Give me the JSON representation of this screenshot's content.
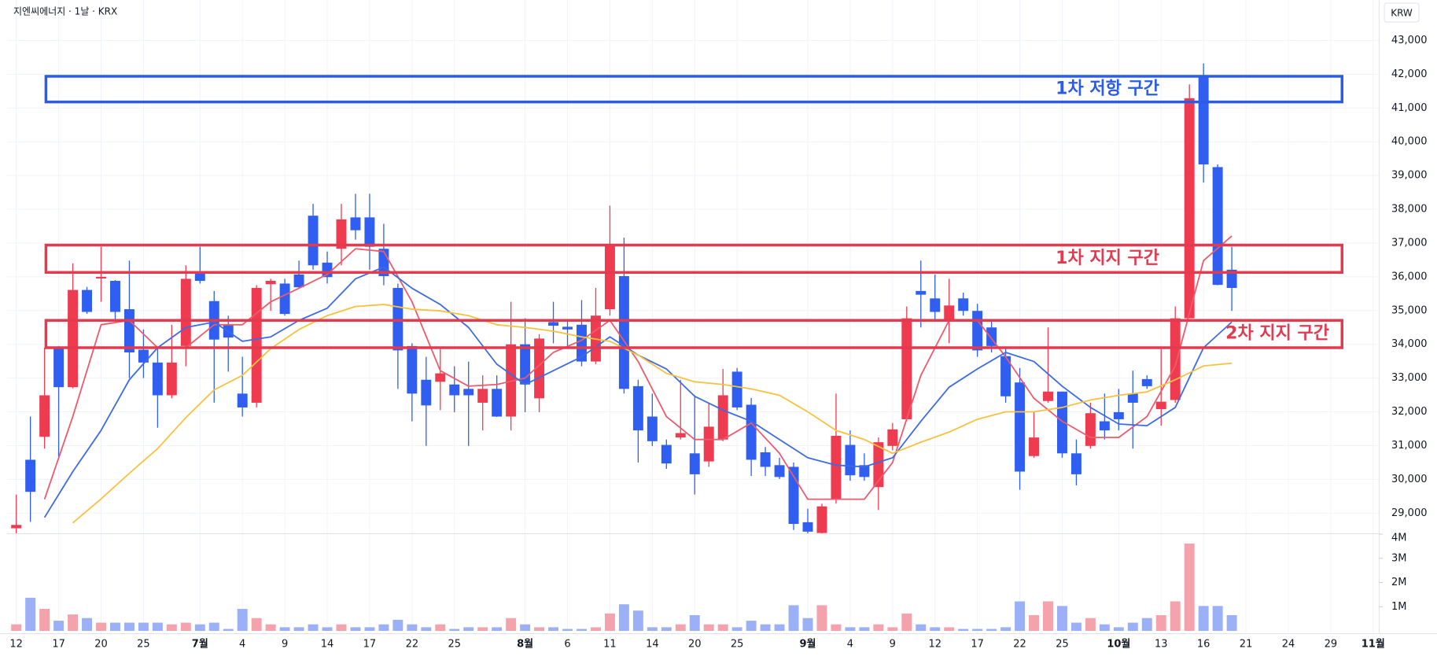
{
  "chart_data": {
    "type": "candlestick",
    "title": "지엔씨에너지 · 1날 · KRX",
    "currency": "KRW",
    "up_color": "#ef3b50",
    "down_color": "#2f5ef0",
    "volume_up_color": "#f4a2ab",
    "volume_down_color": "#9bb0f7",
    "grid": true,
    "xlim": [
      -0.65,
      96.4
    ],
    "ylim": [
      28400,
      44200
    ],
    "xticks": [
      {
        "value": 0,
        "label": "12"
      },
      {
        "value": 3,
        "label": "17"
      },
      {
        "value": 6,
        "label": "20"
      },
      {
        "value": 9,
        "label": "25"
      },
      {
        "value": 13,
        "label": "7월",
        "bold": true
      },
      {
        "value": 16,
        "label": "4"
      },
      {
        "value": 19,
        "label": "9"
      },
      {
        "value": 22,
        "label": "14"
      },
      {
        "value": 25,
        "label": "17"
      },
      {
        "value": 28,
        "label": "22"
      },
      {
        "value": 31,
        "label": "25"
      },
      {
        "value": 36,
        "label": "8월",
        "bold": true
      },
      {
        "value": 39,
        "label": "6"
      },
      {
        "value": 42,
        "label": "11"
      },
      {
        "value": 45,
        "label": "14"
      },
      {
        "value": 48,
        "label": "20"
      },
      {
        "value": 51,
        "label": "25"
      },
      {
        "value": 56,
        "label": "9월",
        "bold": true
      },
      {
        "value": 59,
        "label": "4"
      },
      {
        "value": 62,
        "label": "9"
      },
      {
        "value": 65,
        "label": "12"
      },
      {
        "value": 68,
        "label": "17"
      },
      {
        "value": 71,
        "label": "22"
      },
      {
        "value": 74,
        "label": "25"
      },
      {
        "value": 78,
        "label": "10월",
        "bold": true
      },
      {
        "value": 81,
        "label": "13"
      },
      {
        "value": 84,
        "label": "16"
      },
      {
        "value": 87,
        "label": "21"
      },
      {
        "value": 90,
        "label": "24"
      },
      {
        "value": 93,
        "label": "29"
      },
      {
        "value": 96,
        "label": "11월",
        "bold": true
      }
    ],
    "yticks": [
      {
        "value": 29000,
        "label": "29,000"
      },
      {
        "value": 30000,
        "label": "30,000"
      },
      {
        "value": 31000,
        "label": "31,000"
      },
      {
        "value": 32000,
        "label": "32,000"
      },
      {
        "value": 33000,
        "label": "33,000"
      },
      {
        "value": 34000,
        "label": "34,000"
      },
      {
        "value": 35000,
        "label": "35,000"
      },
      {
        "value": 36000,
        "label": "36,000"
      },
      {
        "value": 37000,
        "label": "37,000"
      },
      {
        "value": 38000,
        "label": "38,000"
      },
      {
        "value": 39000,
        "label": "39,000"
      },
      {
        "value": 40000,
        "label": "40,000"
      },
      {
        "value": 41000,
        "label": "41,000"
      },
      {
        "value": 42000,
        "label": "42,000"
      },
      {
        "value": 43000,
        "label": "43,000"
      }
    ],
    "candles": {
      "x": [
        0,
        1,
        2,
        3,
        4,
        5,
        6,
        7,
        8,
        9,
        10,
        11,
        12,
        13,
        14,
        15,
        16,
        17,
        18,
        19,
        20,
        21,
        22,
        23,
        24,
        25,
        26,
        27,
        28,
        29,
        30,
        31,
        32,
        33,
        34,
        35,
        36,
        37,
        38,
        39,
        40,
        41,
        42,
        43,
        44,
        45,
        46,
        47,
        48,
        49,
        50,
        51,
        52,
        53,
        54,
        55,
        56,
        57,
        58,
        59,
        60,
        61,
        62,
        63,
        64,
        65,
        66,
        67,
        68,
        69,
        70,
        71,
        72,
        73,
        74,
        75,
        76,
        77,
        78,
        79,
        80,
        81,
        82,
        83,
        84,
        85,
        86
      ],
      "open": [
        28550,
        30580,
        31260,
        33900,
        32730,
        35610,
        35950,
        35880,
        35040,
        33840,
        33460,
        32490,
        33950,
        36150,
        35280,
        34580,
        32540,
        32270,
        35780,
        35800,
        36070,
        37810,
        36420,
        36830,
        37760,
        37760,
        36830,
        35670,
        33950,
        32950,
        32890,
        32810,
        32680,
        32270,
        32680,
        31860,
        34000,
        32400,
        34660,
        34520,
        34580,
        33490,
        35040,
        36020,
        32760,
        31860,
        31020,
        31240,
        30770,
        30530,
        31180,
        33190,
        32210,
        30800,
        30420,
        30370,
        28730,
        28410,
        29410,
        31020,
        30420,
        29770,
        30990,
        31780,
        35580,
        35360,
        34710,
        35360,
        34990,
        34500,
        33650,
        32870,
        30690,
        32320,
        32600,
        30770,
        30990,
        31720,
        31990,
        32540,
        32970,
        32080,
        32350,
        34770,
        41970,
        39250,
        36210
      ],
      "high": [
        29550,
        31860,
        33900,
        33950,
        36400,
        35700,
        36890,
        35900,
        36480,
        34440,
        33900,
        34580,
        36340,
        36890,
        35580,
        34850,
        33630,
        35750,
        35940,
        35940,
        36480,
        38160,
        36750,
        38160,
        38460,
        38460,
        37570,
        35800,
        34030,
        33630,
        33900,
        33350,
        33490,
        33080,
        33080,
        35260,
        34770,
        34300,
        35260,
        34720,
        35310,
        35670,
        38110,
        37160,
        32950,
        32540,
        31180,
        32950,
        32490,
        32270,
        33270,
        33300,
        32410,
        30960,
        30640,
        30500,
        29130,
        29280,
        32540,
        31450,
        30770,
        31240,
        31670,
        35120,
        36480,
        36070,
        35940,
        35530,
        35200,
        34720,
        33900,
        33300,
        31990,
        34500,
        32600,
        31180,
        32270,
        32540,
        32680,
        33220,
        33080,
        33900,
        35120,
        41700,
        42320,
        39330,
        36890
      ],
      "low": [
        28400,
        28740,
        30910,
        30640,
        32700,
        34900,
        35260,
        34700,
        33000,
        33000,
        31530,
        32400,
        33350,
        35800,
        32270,
        33190,
        31860,
        32130,
        34990,
        34850,
        35670,
        36210,
        35800,
        36340,
        37100,
        36210,
        35750,
        32680,
        31720,
        30990,
        32050,
        31990,
        30990,
        31450,
        31850,
        31450,
        31990,
        31990,
        34030,
        33900,
        33350,
        33410,
        34850,
        32540,
        30500,
        30990,
        30310,
        31180,
        29550,
        30370,
        31130,
        32050,
        30100,
        30100,
        30010,
        28500,
        28400,
        28400,
        29280,
        29960,
        29960,
        29090,
        30860,
        31720,
        34500,
        34720,
        34030,
        34850,
        33630,
        33760,
        32270,
        29690,
        30640,
        32270,
        30640,
        29820,
        30910,
        31180,
        31450,
        30910,
        32680,
        31590,
        32270,
        34770,
        38790,
        35750,
        34990
      ],
      "close": [
        28650,
        29630,
        32490,
        32730,
        35610,
        34960,
        36000,
        34960,
        33760,
        33460,
        32490,
        33460,
        35940,
        35880,
        34140,
        34200,
        32130,
        35670,
        35880,
        34900,
        35690,
        36340,
        35990,
        37700,
        37380,
        36890,
        36020,
        33820,
        32540,
        32190,
        33140,
        32490,
        32490,
        32680,
        31860,
        34000,
        32810,
        34170,
        34550,
        34440,
        33490,
        34850,
        36970,
        32680,
        31450,
        31130,
        30470,
        31370,
        30150,
        31560,
        32490,
        32130,
        30580,
        30370,
        30070,
        28680,
        28450,
        29200,
        31290,
        30120,
        30070,
        31100,
        31480,
        34770,
        35470,
        34960,
        35150,
        34990,
        33820,
        33950,
        32460,
        30230,
        31240,
        32600,
        30770,
        30150,
        31960,
        31450,
        31780,
        32270,
        32760,
        32300,
        34770,
        41290,
        39330,
        35760,
        35670
      ]
    },
    "moving_averages": [
      {
        "color": "#ec5b6c",
        "x": [
          2,
          4,
          6,
          8,
          10,
          12,
          14,
          16,
          18,
          20,
          22,
          24,
          26,
          28,
          30,
          32,
          34,
          36,
          38,
          40,
          42,
          44,
          46,
          48,
          50,
          52,
          54,
          56,
          58,
          60,
          62,
          64,
          66,
          68,
          70,
          72,
          74,
          76,
          78,
          80,
          82,
          84,
          86
        ],
        "values": [
          29410,
          31860,
          34580,
          34710,
          33900,
          33900,
          34580,
          34580,
          35260,
          35660,
          36070,
          36830,
          36750,
          35260,
          33220,
          32760,
          32810,
          33000,
          33760,
          34120,
          34710,
          33490,
          31860,
          31180,
          31180,
          31670,
          30770,
          29410,
          29410,
          29410,
          30500,
          33080,
          34710,
          34710,
          33630,
          32400,
          31720,
          31240,
          31240,
          31860,
          33360,
          36480,
          37210
        ]
      },
      {
        "color": "#3d6ae6",
        "x": [
          2,
          4,
          6,
          8,
          10,
          12,
          14,
          16,
          18,
          20,
          22,
          24,
          26,
          28,
          30,
          32,
          34,
          36,
          38,
          40,
          42,
          44,
          46,
          48,
          50,
          52,
          54,
          56,
          58,
          60,
          62,
          64,
          66,
          68,
          70,
          72,
          74,
          76,
          78,
          80,
          82,
          84,
          86
        ],
        "values": [
          28870,
          30230,
          31450,
          32950,
          33900,
          34500,
          34660,
          34090,
          34220,
          34710,
          35070,
          35940,
          36290,
          35660,
          35180,
          34500,
          33410,
          32810,
          33220,
          33630,
          34220,
          33680,
          33270,
          32460,
          32050,
          31720,
          31180,
          30640,
          30420,
          30370,
          30640,
          31720,
          32730,
          33270,
          33760,
          33490,
          32760,
          32130,
          31640,
          31590,
          32130,
          33900,
          34660
        ]
      },
      {
        "color": "#f6c23e",
        "x": [
          4,
          6,
          8,
          10,
          12,
          14,
          16,
          18,
          20,
          22,
          24,
          26,
          28,
          30,
          32,
          34,
          36,
          38,
          40,
          42,
          44,
          46,
          48,
          50,
          52,
          54,
          56,
          58,
          60,
          62,
          64,
          66,
          68,
          70,
          72,
          74,
          76,
          78,
          80,
          82,
          84,
          86
        ],
        "values": [
          28710,
          29420,
          30180,
          30910,
          31830,
          32650,
          33080,
          33870,
          34440,
          34850,
          35120,
          35180,
          35040,
          34990,
          34850,
          34580,
          34500,
          34390,
          34220,
          34090,
          33680,
          33140,
          32890,
          32810,
          32680,
          32490,
          32000,
          31450,
          31180,
          30770,
          31100,
          31400,
          31780,
          32000,
          32000,
          32130,
          32350,
          32490,
          32590,
          32950,
          33360,
          33440
        ]
      }
    ],
    "volume": {
      "ylim": [
        0,
        4000000
      ],
      "yticks": [
        {
          "value": 1000000,
          "label": "1M"
        },
        {
          "value": 2000000,
          "label": "2M"
        },
        {
          "value": 3000000,
          "label": "3M"
        },
        {
          "value": 4000000,
          "label": "4M"
        }
      ],
      "values": [
        270000,
        1370000,
        910000,
        420000,
        680000,
        530000,
        340000,
        340000,
        340000,
        340000,
        340000,
        270000,
        340000,
        270000,
        340000,
        80000,
        910000,
        530000,
        270000,
        150000,
        150000,
        270000,
        150000,
        270000,
        150000,
        150000,
        270000,
        460000,
        270000,
        150000,
        270000,
        80000,
        150000,
        150000,
        150000,
        530000,
        270000,
        150000,
        150000,
        80000,
        80000,
        150000,
        720000,
        1100000,
        840000,
        150000,
        150000,
        270000,
        650000,
        270000,
        270000,
        150000,
        420000,
        270000,
        270000,
        1060000,
        530000,
        1060000,
        270000,
        150000,
        150000,
        270000,
        150000,
        720000,
        270000,
        150000,
        150000,
        80000,
        80000,
        80000,
        150000,
        1220000,
        650000,
        1220000,
        1030000,
        340000,
        530000,
        270000,
        150000,
        340000,
        530000,
        650000,
        1220000,
        3610000,
        1030000,
        1030000,
        650000
      ]
    },
    "annotations": [
      {
        "label": "1차 저항 구간",
        "color": "#2b5ce6",
        "x_range": [
          2.1,
          93.8
        ],
        "y_range": [
          41180,
          41940
        ]
      },
      {
        "label": "1차 지지 구간",
        "color": "#e23a4f",
        "x_range": [
          2.1,
          93.8
        ],
        "y_range": [
          36130,
          36940
        ]
      },
      {
        "label": "2차 지지 구간",
        "color": "#e23a4f",
        "x_range": [
          2.1,
          93.8
        ],
        "y_range": [
          33900,
          34710
        ]
      }
    ]
  }
}
